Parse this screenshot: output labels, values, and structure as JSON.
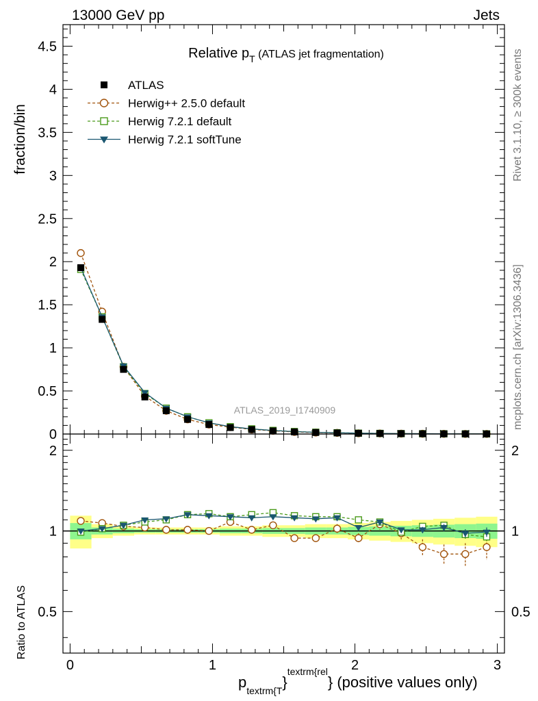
{
  "header": {
    "left": "13000 GeV pp",
    "right": "Jets"
  },
  "side": {
    "rivet": "Rivet 3.1.10, ≥ 300k events",
    "mcplots": "mcplots.cern.ch [arXiv:1306.3436]"
  },
  "colors": {
    "atlas": "#000000",
    "herwigpp": "#a0520a",
    "herwig721": "#4a9a1a",
    "softtune": "#1a5670",
    "band_yellow": "#ffff88",
    "band_green": "#8ef58e"
  },
  "chart_data": [
    {
      "type": "line",
      "title_main": "Relative p",
      "title_sub": "T",
      "title_suffix": "(ATLAS jet fragmentation)",
      "analysis_label": "ATLAS_2019_I1740909",
      "ylabel": "fraction/bin",
      "ylim": [
        0,
        4.75
      ],
      "yticks": [
        0,
        0.5,
        1,
        1.5,
        2,
        2.5,
        3,
        3.5,
        4,
        4.5
      ],
      "ytick_labels": [
        "0",
        "0.5",
        "1",
        "1.5",
        "2",
        "2.5",
        "3",
        "3.5",
        "4",
        "4.5"
      ],
      "x": [
        0.075,
        0.225,
        0.375,
        0.525,
        0.675,
        0.825,
        0.975,
        1.125,
        1.275,
        1.425,
        1.575,
        1.725,
        1.875,
        2.025,
        2.175,
        2.325,
        2.475,
        2.625,
        2.775,
        2.925
      ],
      "legend": [
        {
          "name": "ATLAS",
          "marker": "square-filled",
          "key": "atlas"
        },
        {
          "name": "Herwig++ 2.5.0 default",
          "marker": "circle-open",
          "key": "herwigpp"
        },
        {
          "name": "Herwig 7.2.1 default",
          "marker": "square-open",
          "key": "herwig721"
        },
        {
          "name": "Herwig 7.2.1 softTune",
          "marker": "triangle-down-filled",
          "key": "softtune"
        }
      ],
      "series": [
        {
          "name": "ATLAS",
          "key": "atlas",
          "values": [
            1.93,
            1.33,
            0.75,
            0.43,
            0.27,
            0.17,
            0.11,
            0.075,
            0.052,
            0.036,
            0.025,
            0.018,
            0.013,
            0.009,
            0.0065,
            0.0048,
            0.0035,
            0.0026,
            0.0019,
            0.0014
          ]
        },
        {
          "name": "Herwig++ 2.5.0 default",
          "key": "herwigpp",
          "values": [
            2.1,
            1.42,
            0.78,
            0.44,
            0.27,
            0.17,
            0.11,
            0.08,
            0.053,
            0.037,
            0.024,
            0.017,
            0.013,
            0.0085,
            0.0068,
            0.0047,
            0.003,
            0.0021,
            0.0016,
            0.0012
          ]
        },
        {
          "name": "Herwig 7.2.1 default",
          "key": "herwig721",
          "values": [
            1.91,
            1.36,
            0.78,
            0.47,
            0.3,
            0.2,
            0.13,
            0.085,
            0.06,
            0.042,
            0.029,
            0.021,
            0.015,
            0.01,
            0.0073,
            0.0047,
            0.0036,
            0.0027,
            0.0018,
            0.0013
          ]
        },
        {
          "name": "Herwig 7.2.1 softTune",
          "key": "softtune",
          "values": [
            1.93,
            1.36,
            0.79,
            0.48,
            0.3,
            0.2,
            0.13,
            0.085,
            0.059,
            0.041,
            0.028,
            0.02,
            0.015,
            0.0094,
            0.0071,
            0.0048,
            0.0035,
            0.0027,
            0.0019,
            0.0014
          ]
        }
      ]
    },
    {
      "type": "line",
      "ylabel": "Ratio to ATLAS",
      "xlabel_main": "p",
      "xlabel_sub": "textrm{T",
      "xlabel_brace": "}",
      "xlabel_sup": "textrm{rel",
      "xlabel_suffix": "} (positive values only)",
      "xlim": [
        -0.05,
        3.05
      ],
      "xticks": [
        0,
        1,
        2,
        3
      ],
      "xtick_labels": [
        "0",
        "1",
        "2",
        "3"
      ],
      "ylim": [
        0.35,
        2.3
      ],
      "yticks": [
        0.5,
        1,
        2
      ],
      "ytick_labels": [
        "0.5",
        "1",
        "2"
      ],
      "x": [
        0.075,
        0.225,
        0.375,
        0.525,
        0.675,
        0.825,
        0.975,
        1.125,
        1.275,
        1.425,
        1.575,
        1.725,
        1.875,
        2.025,
        2.175,
        2.325,
        2.475,
        2.625,
        2.775,
        2.925
      ],
      "bins": [
        [
          0.0,
          0.15
        ],
        [
          0.15,
          0.3
        ],
        [
          0.3,
          0.45
        ],
        [
          0.45,
          0.6
        ],
        [
          0.6,
          0.75
        ],
        [
          0.75,
          0.9
        ],
        [
          0.9,
          1.05
        ],
        [
          1.05,
          1.2
        ],
        [
          1.2,
          1.35
        ],
        [
          1.35,
          1.5
        ],
        [
          1.5,
          1.65
        ],
        [
          1.65,
          1.8
        ],
        [
          1.8,
          1.95
        ],
        [
          1.95,
          2.1
        ],
        [
          2.1,
          2.25
        ],
        [
          2.25,
          2.4
        ],
        [
          2.4,
          2.55
        ],
        [
          2.55,
          2.7
        ],
        [
          2.7,
          2.85
        ],
        [
          2.85,
          3.0
        ]
      ],
      "band_yellow": [
        [
          0.86,
          1.14
        ],
        [
          0.94,
          1.06
        ],
        [
          0.96,
          1.04
        ],
        [
          0.97,
          1.03
        ],
        [
          0.97,
          1.03
        ],
        [
          0.97,
          1.03
        ],
        [
          0.97,
          1.03
        ],
        [
          0.96,
          1.04
        ],
        [
          0.96,
          1.04
        ],
        [
          0.95,
          1.05
        ],
        [
          0.95,
          1.05
        ],
        [
          0.94,
          1.06
        ],
        [
          0.94,
          1.06
        ],
        [
          0.93,
          1.07
        ],
        [
          0.92,
          1.08
        ],
        [
          0.91,
          1.09
        ],
        [
          0.9,
          1.1
        ],
        [
          0.89,
          1.11
        ],
        [
          0.88,
          1.12
        ],
        [
          0.87,
          1.13
        ]
      ],
      "band_green": [
        [
          0.93,
          1.07
        ],
        [
          0.97,
          1.03
        ],
        [
          0.98,
          1.02
        ],
        [
          0.985,
          1.015
        ],
        [
          0.985,
          1.015
        ],
        [
          0.985,
          1.015
        ],
        [
          0.985,
          1.015
        ],
        [
          0.98,
          1.02
        ],
        [
          0.98,
          1.02
        ],
        [
          0.975,
          1.025
        ],
        [
          0.975,
          1.025
        ],
        [
          0.97,
          1.03
        ],
        [
          0.97,
          1.03
        ],
        [
          0.965,
          1.035
        ],
        [
          0.96,
          1.04
        ],
        [
          0.955,
          1.045
        ],
        [
          0.95,
          1.05
        ],
        [
          0.945,
          1.055
        ],
        [
          0.94,
          1.06
        ],
        [
          0.935,
          1.065
        ]
      ],
      "series": [
        {
          "name": "Herwig++ 2.5.0 default",
          "key": "herwigpp",
          "values": [
            1.09,
            1.07,
            1.04,
            1.03,
            1.01,
            1.01,
            1.0,
            1.08,
            1.01,
            1.05,
            0.94,
            0.94,
            1.02,
            0.94,
            1.06,
            0.98,
            0.87,
            0.82,
            0.82,
            0.87
          ],
          "errors": [
            0.01,
            0.01,
            0.01,
            0.01,
            0.01,
            0.01,
            0.01,
            0.01,
            0.02,
            0.02,
            0.02,
            0.03,
            0.04,
            0.04,
            0.05,
            0.05,
            0.06,
            0.07,
            0.08,
            0.09
          ]
        },
        {
          "name": "Herwig 7.2.1 default",
          "key": "herwig721",
          "values": [
            0.99,
            1.02,
            1.05,
            1.08,
            1.1,
            1.15,
            1.16,
            1.13,
            1.15,
            1.17,
            1.14,
            1.13,
            1.13,
            1.1,
            1.08,
            0.99,
            1.04,
            1.05,
            0.97,
            0.95
          ],
          "errors": [
            0.005,
            0.005,
            0.005,
            0.005,
            0.005,
            0.005,
            0.01,
            0.01,
            0.01,
            0.01,
            0.01,
            0.01,
            0.015,
            0.015,
            0.02,
            0.02,
            0.025,
            0.03,
            0.035,
            0.04
          ]
        },
        {
          "name": "Herwig 7.2.1 softTune",
          "key": "softtune",
          "values": [
            1.0,
            1.02,
            1.05,
            1.1,
            1.11,
            1.15,
            1.14,
            1.13,
            1.12,
            1.13,
            1.12,
            1.11,
            1.12,
            1.03,
            1.08,
            1.01,
            1.01,
            1.03,
            0.98,
            0.99
          ],
          "errors": [
            0.005,
            0.005,
            0.005,
            0.005,
            0.005,
            0.005,
            0.01,
            0.01,
            0.01,
            0.01,
            0.01,
            0.01,
            0.015,
            0.015,
            0.02,
            0.02,
            0.025,
            0.03,
            0.035,
            0.04
          ]
        }
      ]
    }
  ]
}
